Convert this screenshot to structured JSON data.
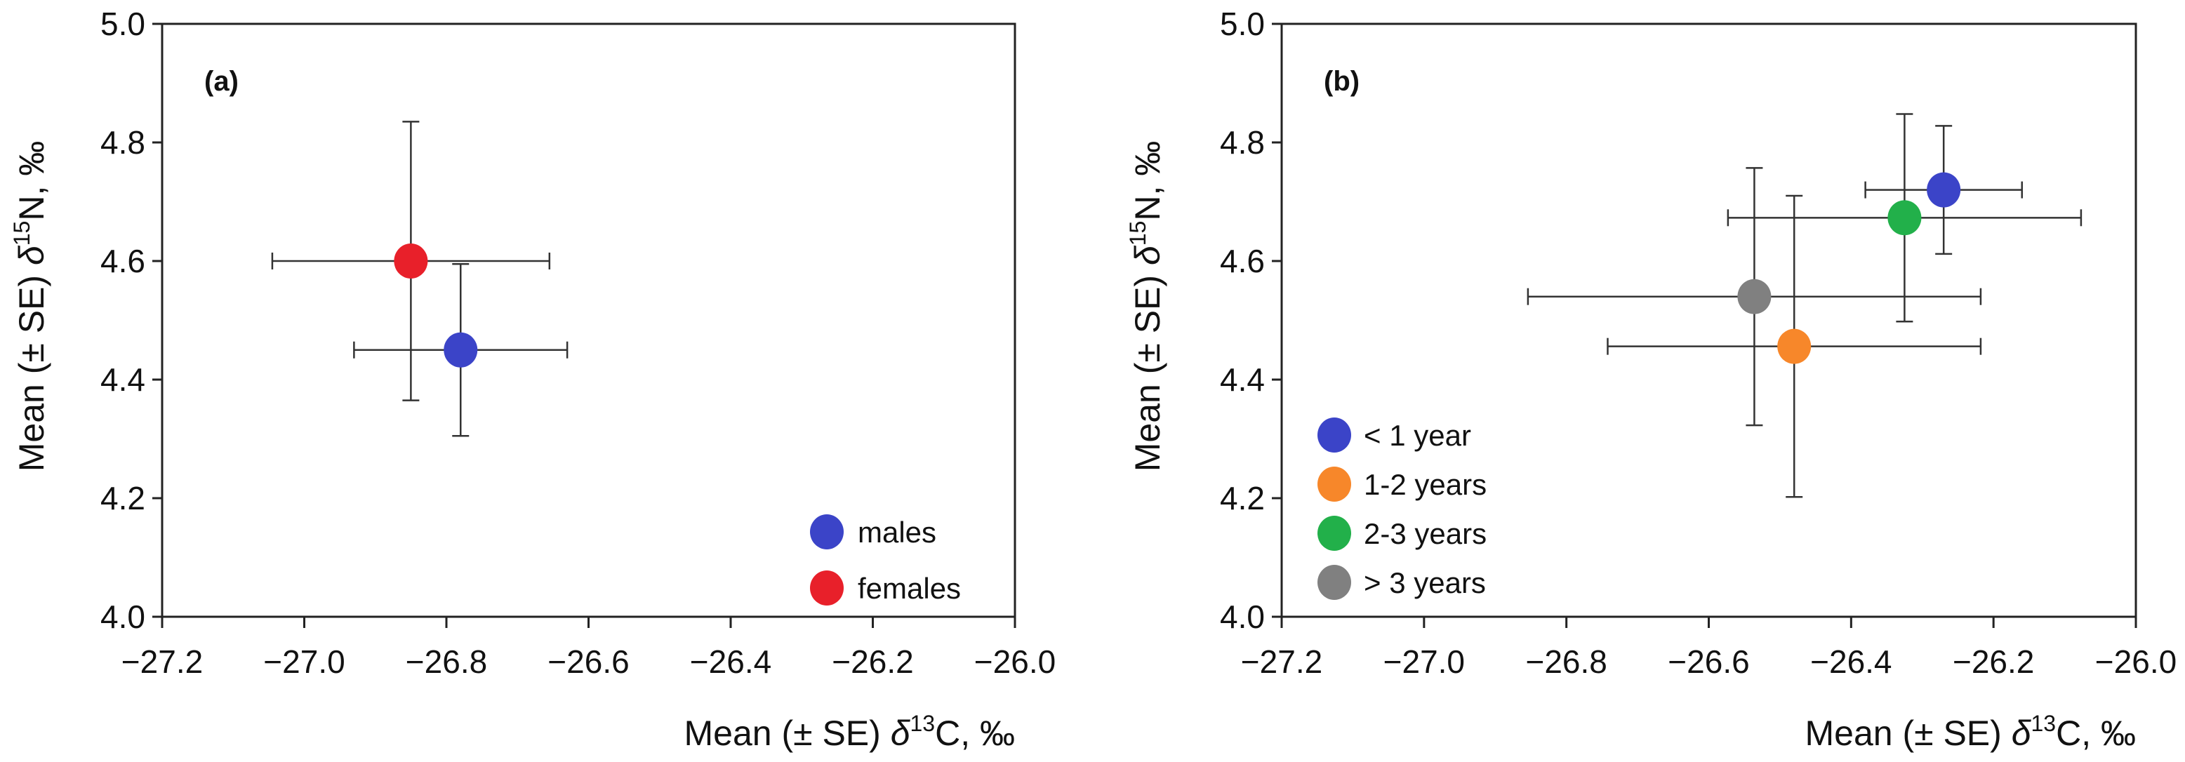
{
  "chart_data": [
    {
      "type": "scatter",
      "panel_label": "(a)",
      "xlabel": "Mean (± SE) δ13C, ‰",
      "xlabel_parts": {
        "pre": "Mean (± SE) ",
        "delta": "δ",
        "sup": "13",
        "post": "C, ‰"
      },
      "ylabel": "Mean (± SE) δ15N, ‰",
      "ylabel_parts": {
        "pre": "Mean (± SE) ",
        "delta": "δ",
        "sup": "15",
        "post": "N, ‰"
      },
      "xlim": [
        -27.2,
        -26.0
      ],
      "ylim": [
        4.0,
        5.0
      ],
      "xticks": [
        "-27.2",
        "-27.0",
        "-26.8",
        "-26.6",
        "-26.4",
        "-26.2",
        "-26.0"
      ],
      "yticks": [
        "4.0",
        "4.2",
        "4.4",
        "4.6",
        "4.8",
        "5.0"
      ],
      "grid": false,
      "legend_position": "bottom-right",
      "series": [
        {
          "name": "males",
          "color": "#3b44c8",
          "x": -26.78,
          "y": 4.45,
          "xerr": 0.15,
          "yerr": 0.145
        },
        {
          "name": "females",
          "color": "#e8202a",
          "x": -26.85,
          "y": 4.6,
          "xerr": 0.195,
          "yerr": 0.235
        }
      ]
    },
    {
      "type": "scatter",
      "panel_label": "(b)",
      "xlabel": "Mean (± SE) δ13C, ‰",
      "xlabel_parts": {
        "pre": "Mean (± SE) ",
        "delta": "δ",
        "sup": "13",
        "post": "C, ‰"
      },
      "ylabel": "Mean (± SE) δ15N, ‰",
      "ylabel_parts": {
        "pre": "Mean (± SE) ",
        "delta": "δ",
        "sup": "15",
        "post": "N, ‰"
      },
      "xlim": [
        -27.2,
        -26.0
      ],
      "ylim": [
        4.0,
        5.0
      ],
      "xticks": [
        "-27.2",
        "-27.0",
        "-26.8",
        "-26.6",
        "-26.4",
        "-26.2",
        "-26.0"
      ],
      "yticks": [
        "4.0",
        "4.2",
        "4.4",
        "4.6",
        "4.8",
        "5.0"
      ],
      "grid": false,
      "legend_position": "bottom-left",
      "series": [
        {
          "name": "< 1 year",
          "color": "#3b44c8",
          "x": -26.27,
          "y": 4.72,
          "xerr": 0.11,
          "yerr": 0.108
        },
        {
          "name": "1-2 years",
          "color": "#f7872a",
          "x": -26.48,
          "y": 4.456,
          "xerr": 0.262,
          "yerr": 0.254
        },
        {
          "name": "2-3 years",
          "color": "#22b04a",
          "x": -26.325,
          "y": 4.673,
          "xerr": 0.248,
          "yerr": 0.175
        },
        {
          "name": "> 3 years",
          "color": "#808080",
          "x": -26.536,
          "y": 4.54,
          "xerr": 0.318,
          "yerr": 0.217
        }
      ]
    }
  ]
}
